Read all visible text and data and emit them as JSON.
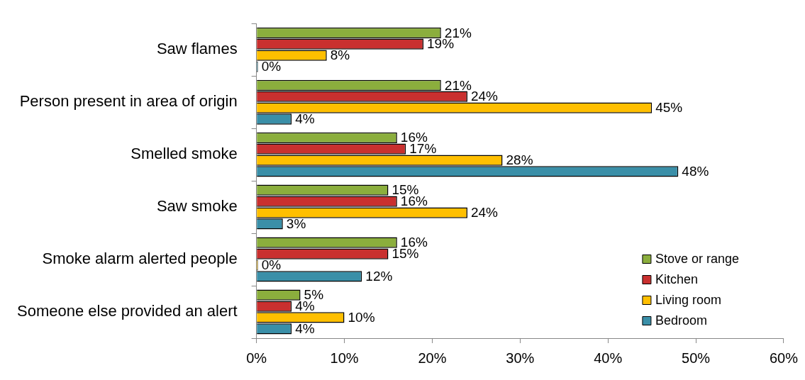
{
  "chart_data": {
    "type": "bar",
    "orientation": "horizontal",
    "categories": [
      "Saw flames",
      "Person present in area of origin",
      "Smelled smoke",
      "Saw smoke",
      "Smoke alarm alerted people",
      "Someone else provided an alert"
    ],
    "series": [
      {
        "name": "Stove or range",
        "color": "#8bae3d",
        "values": [
          21,
          21,
          16,
          15,
          16,
          5
        ],
        "value_labels": [
          "21%",
          "21%",
          "16%",
          "15%",
          "16%",
          "5%"
        ]
      },
      {
        "name": "Kitchen",
        "color": "#c9302f",
        "values": [
          19,
          24,
          17,
          16,
          15,
          4
        ],
        "value_labels": [
          "19%",
          "24%",
          "17%",
          "16%",
          "15%",
          "4%"
        ]
      },
      {
        "name": "Living room",
        "color": "#ffbf00",
        "values": [
          8,
          45,
          28,
          24,
          0,
          10
        ],
        "value_labels": [
          "8%",
          "45%",
          "28%",
          "24%",
          "0%",
          "10%"
        ]
      },
      {
        "name": "Bedroom",
        "color": "#3a8fa8",
        "values": [
          0,
          4,
          48,
          3,
          12,
          4
        ],
        "value_labels": [
          "0%",
          "4%",
          "48%",
          "3%",
          "12%",
          "4%"
        ]
      }
    ],
    "xlim": [
      0,
      60
    ],
    "xticks": [
      {
        "value": 0,
        "label": "0%"
      },
      {
        "value": 10,
        "label": "10%"
      },
      {
        "value": 20,
        "label": "20%"
      },
      {
        "value": 30,
        "label": "30%"
      },
      {
        "value": 40,
        "label": "40%"
      },
      {
        "value": 50,
        "label": "50%"
      },
      {
        "value": 60,
        "label": "60%"
      }
    ],
    "grid": false,
    "legend": "bottom right"
  }
}
